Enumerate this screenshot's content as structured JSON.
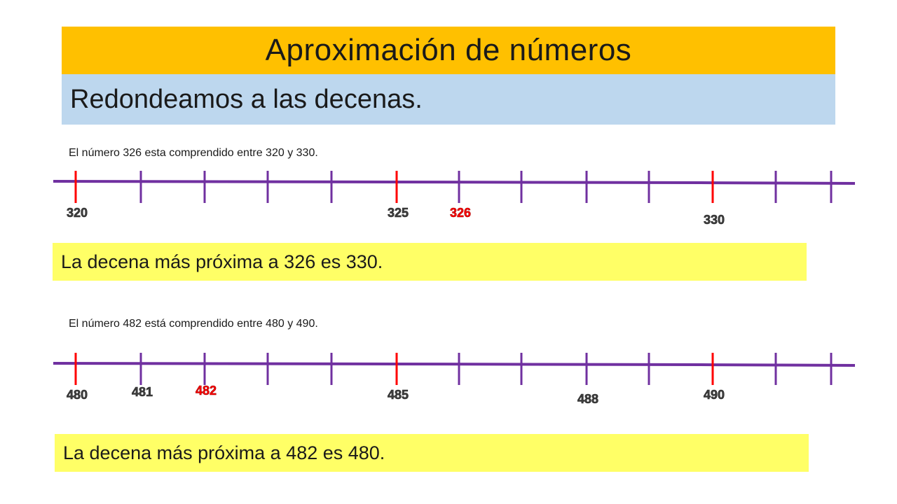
{
  "title": "Aproximación de números",
  "subtitle": "Redondeamos a las decenas.",
  "colors": {
    "title_bg": "#ffc000",
    "subtitle_bg": "#bdd7ee",
    "conclusion_bg": "#ffff66",
    "line": "#7030a0",
    "highlight": "#ff0000",
    "label": "#404040"
  },
  "examples": [
    {
      "caption": "El número 326 esta comprendido entre 320 y 330.",
      "conclusion": "La decena más próxima a 326 es 330.",
      "ticks": [
        {
          "label": "320",
          "highlight": false,
          "red_tick": true
        },
        {
          "label": "",
          "highlight": false,
          "red_tick": false
        },
        {
          "label": "",
          "highlight": false,
          "red_tick": false
        },
        {
          "label": "",
          "highlight": false,
          "red_tick": false
        },
        {
          "label": "",
          "highlight": false,
          "red_tick": false
        },
        {
          "label": "325",
          "highlight": false,
          "red_tick": true
        },
        {
          "label": "326",
          "highlight": true,
          "red_tick": false
        },
        {
          "label": "",
          "highlight": false,
          "red_tick": false
        },
        {
          "label": "",
          "highlight": false,
          "red_tick": false
        },
        {
          "label": "",
          "highlight": false,
          "red_tick": false
        },
        {
          "label": "330",
          "highlight": false,
          "red_tick": true
        },
        {
          "label": "",
          "highlight": false,
          "red_tick": false
        },
        {
          "label": "",
          "highlight": false,
          "red_tick": false
        }
      ]
    },
    {
      "caption": "El número 482 está comprendido entre 480 y 490.",
      "conclusion": "La decena más próxima a 482 es 480.",
      "ticks": [
        {
          "label": "480",
          "highlight": false,
          "red_tick": true
        },
        {
          "label": "481",
          "highlight": false,
          "red_tick": false
        },
        {
          "label": "482",
          "highlight": true,
          "red_tick": false
        },
        {
          "label": "",
          "highlight": false,
          "red_tick": false
        },
        {
          "label": "",
          "highlight": false,
          "red_tick": false
        },
        {
          "label": "485",
          "highlight": false,
          "red_tick": true
        },
        {
          "label": "",
          "highlight": false,
          "red_tick": false
        },
        {
          "label": "",
          "highlight": false,
          "red_tick": false
        },
        {
          "label": "488",
          "highlight": false,
          "red_tick": false
        },
        {
          "label": "",
          "highlight": false,
          "red_tick": false
        },
        {
          "label": "490",
          "highlight": false,
          "red_tick": true
        },
        {
          "label": "",
          "highlight": false,
          "red_tick": false
        },
        {
          "label": "",
          "highlight": false,
          "red_tick": false
        }
      ]
    }
  ]
}
